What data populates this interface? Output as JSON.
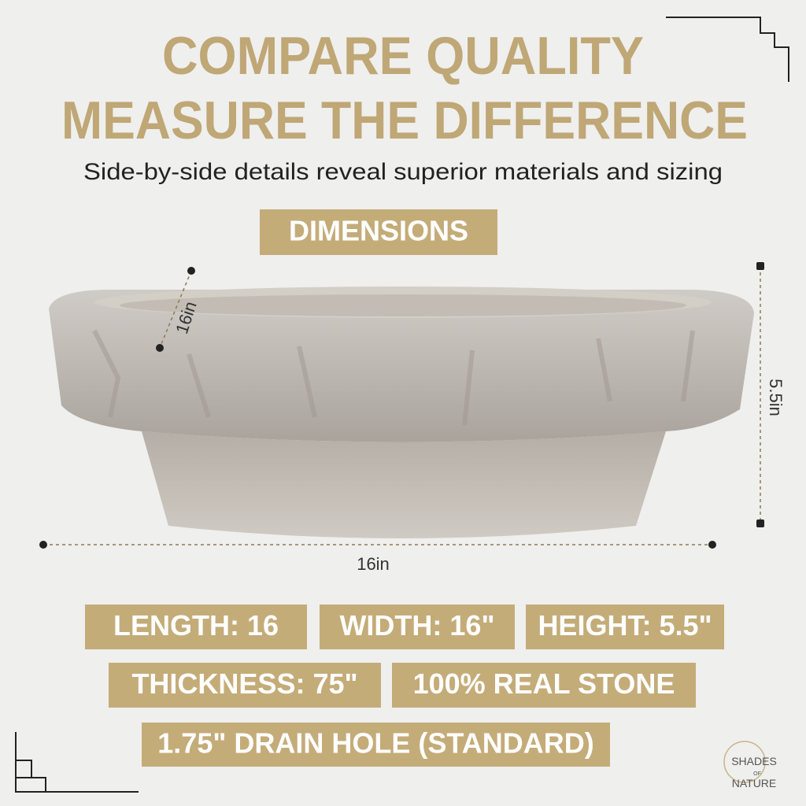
{
  "header": {
    "title_lines": [
      "COMPARE QUALITY",
      "MEASURE THE DIFFERENCE"
    ],
    "subtitle": "Side-by-side details reveal superior materials and sizing"
  },
  "section_label": "DIMENSIONS",
  "dimension_labels": {
    "depth": "16in",
    "height": "5.5in",
    "width": "16in"
  },
  "specs": [
    "LENGTH: 16",
    "WIDTH: 16\"",
    "HEIGHT: 5.5\"",
    "THICKNESS: 75\"",
    "100% REAL STONE",
    "1.75\" DRAIN HOLE (STANDARD)"
  ],
  "logo": {
    "lines": [
      "SHADES",
      "OF",
      "NATURE"
    ]
  }
}
